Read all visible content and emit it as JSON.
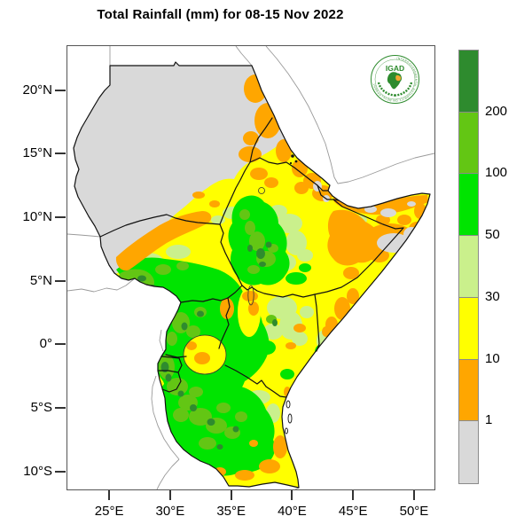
{
  "title": "Total Rainfall (mm) for 08-15 Nov 2022",
  "axes": {
    "lat": {
      "min": -11.36,
      "max": 23.54,
      "ticks": [
        {
          "value": 20,
          "label": "20°N"
        },
        {
          "value": 15,
          "label": "15°N"
        },
        {
          "value": 10,
          "label": "10°N"
        },
        {
          "value": 5,
          "label": "5°N"
        },
        {
          "value": 0,
          "label": "0°"
        },
        {
          "value": -5,
          "label": "5°S"
        },
        {
          "value": -10,
          "label": "10°S"
        }
      ]
    },
    "lon": {
      "min": 21.5,
      "max": 51.6,
      "ticks": [
        {
          "value": 25,
          "label": "25°E"
        },
        {
          "value": 30,
          "label": "30°E"
        },
        {
          "value": 35,
          "label": "35°E"
        },
        {
          "value": 40,
          "label": "40°E"
        },
        {
          "value": 45,
          "label": "45°E"
        },
        {
          "value": 50,
          "label": "50°E"
        }
      ]
    }
  },
  "legend": {
    "boundary_labels": [
      "200",
      "100",
      "50",
      "30",
      "10",
      "1"
    ],
    "segments": [
      {
        "name": "above-200-mm",
        "color": "#2e8b2e"
      },
      {
        "name": "100-200-mm",
        "color": "#63c614"
      },
      {
        "name": "50-100-mm",
        "color": "#00e400"
      },
      {
        "name": "30-50-mm",
        "color": "#caf08c"
      },
      {
        "name": "10-30-mm",
        "color": "#ffff00"
      },
      {
        "name": "1-10-mm",
        "color": "#ffa600"
      },
      {
        "name": "below-1-mm",
        "color": "#d9d9d9"
      }
    ]
  },
  "logo": {
    "acronym": "IGAD",
    "ring_text": "INTERGOVERNMENTAL AUTHORITY ON DEVELOPMENT",
    "green": "#2e8b2e",
    "accent": "#f0a830"
  }
}
